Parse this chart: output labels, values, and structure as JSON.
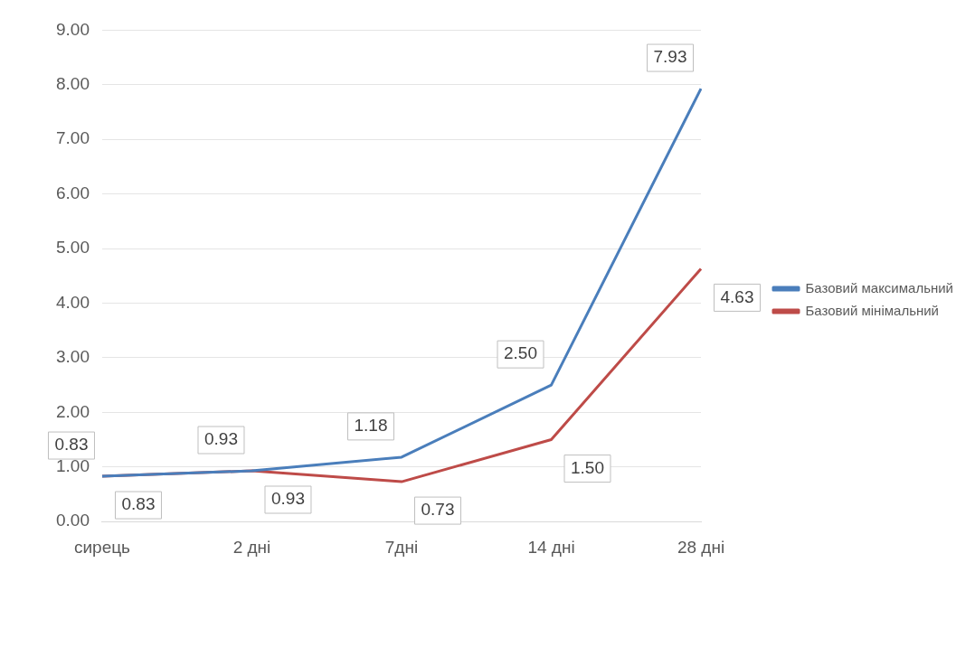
{
  "chart_data": {
    "type": "line",
    "categories": [
      "сирець",
      "2 дні",
      "7дні",
      "14 дні",
      "28 дні"
    ],
    "series": [
      {
        "name": "Базовий максимальний",
        "color": "#4a7ebb",
        "values": [
          0.83,
          0.93,
          1.18,
          2.5,
          7.93
        ],
        "value_labels": [
          "0.83",
          "0.93",
          "1.18",
          "2.50",
          "7.93"
        ]
      },
      {
        "name": "Базовий мінімальний",
        "color": "#be4b48",
        "values": [
          0.83,
          0.93,
          0.73,
          1.5,
          4.63
        ],
        "value_labels": [
          "0.83",
          "0.93",
          "0.73",
          "1.50",
          "4.63"
        ]
      }
    ],
    "ylim": [
      0,
      9
    ],
    "yticks": [
      {
        "value": 0,
        "label": "0.00"
      },
      {
        "value": 1,
        "label": "1.00"
      },
      {
        "value": 2,
        "label": "2.00"
      },
      {
        "value": 3,
        "label": "3.00"
      },
      {
        "value": 4,
        "label": "4.00"
      },
      {
        "value": 5,
        "label": "5.00"
      },
      {
        "value": 6,
        "label": "6.00"
      },
      {
        "value": 7,
        "label": "7.00"
      },
      {
        "value": 8,
        "label": "8.00"
      },
      {
        "value": 9,
        "label": "9.00"
      }
    ],
    "grid": "y",
    "legend": "right",
    "marker": "none",
    "line_style": "solid"
  }
}
